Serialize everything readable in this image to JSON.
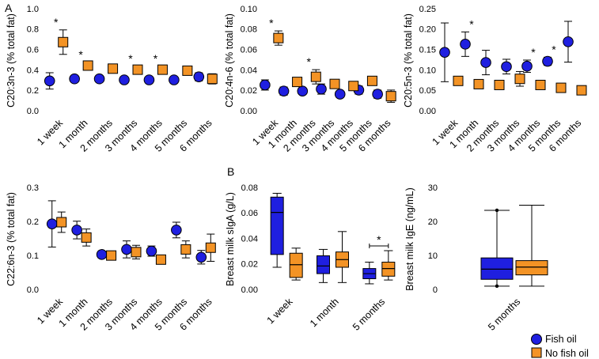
{
  "colors": {
    "fish_oil": "#1f1fe0",
    "no_fish_oil": "#f39325",
    "outline": "#000000"
  },
  "panel_labels": [
    "A",
    "B"
  ],
  "legend": {
    "items": [
      {
        "label": "Fish oil",
        "shape": "circle",
        "color": "#1f1fe0"
      },
      {
        "label": "No fish oil",
        "shape": "square",
        "color": "#f39325"
      }
    ]
  },
  "chart_data": [
    {
      "id": "c20_3n3",
      "type": "scatter",
      "ylabel": "C20:3n-3 (% total fat)",
      "ylim": [
        0,
        1.0
      ],
      "yticks": [
        "0.0",
        "0.2",
        "0.4",
        "0.6",
        "0.8",
        "1.0"
      ],
      "categories": [
        "1 week",
        "1 month",
        "2 months",
        "3 months",
        "4 months",
        "5 months",
        "6 months"
      ],
      "series": [
        {
          "name": "Fish oil",
          "values": [
            0.3,
            0.32,
            0.32,
            0.31,
            0.31,
            0.31,
            0.34
          ],
          "err": [
            0.08,
            0.015,
            0.015,
            0.015,
            0.015,
            0.015,
            0.04
          ]
        },
        {
          "name": "No fish oil",
          "values": [
            0.68,
            0.45,
            0.42,
            0.41,
            0.41,
            0.4,
            0.32
          ],
          "err": [
            0.12,
            0.03,
            0.03,
            0.03,
            0.03,
            0.03,
            0.05
          ]
        }
      ],
      "significant": [
        0,
        1,
        3,
        4
      ]
    },
    {
      "id": "c20_4n6",
      "type": "scatter",
      "ylabel": "C20:4n-6 (% total fat)",
      "ylim": [
        0,
        0.1
      ],
      "yticks": [
        "0.00",
        "0.02",
        "0.04",
        "0.06",
        "0.08",
        "0.10"
      ],
      "categories": [
        "1 week",
        "1 month",
        "2 months",
        "3 months",
        "4 months",
        "5 months",
        "6 months"
      ],
      "series": [
        {
          "name": "Fish oil",
          "values": [
            0.026,
            0.02,
            0.02,
            0.022,
            0.017,
            0.021,
            0.017
          ],
          "err": [
            0.005,
            0.004,
            0.002,
            0.005,
            0.003,
            0.004,
            0.004
          ]
        },
        {
          "name": "No fish oil",
          "values": [
            0.072,
            0.029,
            0.034,
            0.027,
            0.025,
            0.03,
            0.015
          ],
          "err": [
            0.007,
            0.004,
            0.007,
            0.004,
            0.004,
            0.004,
            0.006
          ]
        }
      ],
      "significant": [
        0,
        2
      ]
    },
    {
      "id": "c20_5n3",
      "type": "scatter",
      "ylabel": "C20:5n-3 (% total fat)",
      "ylim": [
        0,
        0.25
      ],
      "yticks": [
        "0.00",
        "0.05",
        "0.10",
        "0.15",
        "0.20",
        "0.25"
      ],
      "categories": [
        "1 week",
        "1 month",
        "2 months",
        "3 months",
        "4 months",
        "5 months",
        "6 months"
      ],
      "series": [
        {
          "name": "Fish oil",
          "values": [
            0.145,
            0.165,
            0.12,
            0.11,
            0.111,
            0.123,
            0.171
          ],
          "err": [
            0.072,
            0.03,
            0.03,
            0.018,
            0.015,
            0.01,
            0.05
          ]
        },
        {
          "name": "No fish oil",
          "values": [
            0.075,
            0.067,
            0.065,
            0.08,
            0.065,
            0.058,
            0.052
          ],
          "err": [
            0.01,
            0.005,
            0.005,
            0.018,
            0.005,
            0.005,
            0.004
          ]
        }
      ],
      "significant": [
        1,
        4,
        5
      ]
    },
    {
      "id": "c22_6n3",
      "type": "scatter",
      "ylabel": "C22:6n-3 (% total fat)",
      "ylim": [
        0,
        0.3
      ],
      "yticks": [
        "0.0",
        "0.1",
        "0.2",
        "0.3"
      ],
      "categories": [
        "1 week",
        "1 month",
        "2 months",
        "3 months",
        "4 months",
        "5 months",
        "6 months"
      ],
      "series": [
        {
          "name": "Fish oil",
          "values": [
            0.195,
            0.177,
            0.105,
            0.12,
            0.115,
            0.177,
            0.097
          ],
          "err": [
            0.068,
            0.026,
            0.01,
            0.025,
            0.015,
            0.023,
            0.02
          ]
        },
        {
          "name": "No fish oil",
          "values": [
            0.2,
            0.155,
            0.102,
            0.112,
            0.09,
            0.12,
            0.125
          ],
          "err": [
            0.03,
            0.025,
            0.01,
            0.02,
            0.01,
            0.025,
            0.04
          ]
        }
      ],
      "significant": []
    },
    {
      "id": "siga",
      "type": "box",
      "ylabel": "Breast milk sIgA (g/L)",
      "ylim": [
        0,
        0.08
      ],
      "yticks": [
        "0.00",
        "0.02",
        "0.04",
        "0.06",
        "0.08"
      ],
      "categories": [
        "1 week",
        "1 month",
        "5 months"
      ],
      "series": [
        {
          "name": "Fish oil",
          "boxes": [
            {
              "min": 0.018,
              "q1": 0.028,
              "median": 0.061,
              "q3": 0.073,
              "max": 0.076
            },
            {
              "min": 0.006,
              "q1": 0.013,
              "median": 0.019,
              "q3": 0.027,
              "max": 0.032
            },
            {
              "min": 0.005,
              "q1": 0.009,
              "median": 0.013,
              "q3": 0.017,
              "max": 0.022
            }
          ]
        },
        {
          "name": "No fish oil",
          "boxes": [
            {
              "min": 0.008,
              "q1": 0.01,
              "median": 0.02,
              "q3": 0.029,
              "max": 0.033
            },
            {
              "min": 0.006,
              "q1": 0.018,
              "median": 0.024,
              "q3": 0.03,
              "max": 0.046
            },
            {
              "min": 0.008,
              "q1": 0.011,
              "median": 0.017,
              "q3": 0.022,
              "max": 0.031
            }
          ]
        }
      ],
      "significance_bracket": {
        "category": "5 months",
        "label": "*"
      }
    },
    {
      "id": "ige",
      "type": "box",
      "ylabel": "Breast milk IgE (ng/mL)",
      "ylim": [
        0,
        30
      ],
      "yticks": [
        "0",
        "10",
        "20",
        "30"
      ],
      "categories": [
        "5 months"
      ],
      "series": [
        {
          "name": "Fish oil",
          "boxes": [
            {
              "min": 1.2,
              "q1": 3.2,
              "median": 6.2,
              "q3": 9.5,
              "max": 23.5
            }
          ]
        },
        {
          "name": "No fish oil",
          "boxes": [
            {
              "min": 1.2,
              "q1": 4.5,
              "median": 6.8,
              "q3": 8.7,
              "max": 25.0
            }
          ]
        }
      ]
    }
  ]
}
